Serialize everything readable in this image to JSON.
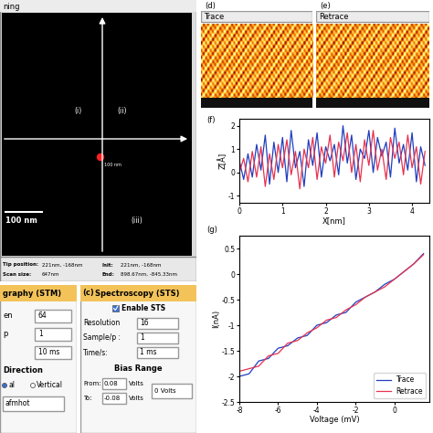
{
  "scanning_window": {
    "title": "ning",
    "image_labels": [
      "(i)",
      "(ii)",
      "(iii)"
    ],
    "scale_bar": "100 nm",
    "inset_scale_bar": "100 nm",
    "status": [
      [
        "Tip position:",
        "221nm, -168nm"
      ],
      [
        "Init:",
        "221nm, -168nm"
      ],
      [
        "Scan size:",
        "647nm"
      ],
      [
        "End:",
        "898.67nm, -845.33nm"
      ]
    ]
  },
  "topography": {
    "title": "graphy (STM)",
    "fields": [
      {
        "label": "en",
        "value": "64"
      },
      {
        "label": "p",
        "value": "1"
      },
      {
        "value": "10 ms"
      }
    ],
    "direction": {
      "title": "Direction",
      "options": [
        "al",
        "Vertical"
      ]
    },
    "colormap": "afmhot"
  },
  "spectroscopy": {
    "panel_label": "(c)",
    "title": "Spectroscopy (STS)",
    "checkbox": "Enable STS",
    "fields": [
      {
        "label": "Resolution",
        "value": "16"
      },
      {
        "label": "Sample/p :",
        "value": "1"
      },
      {
        "label": "Time/s:",
        "value": "1 ms"
      }
    ],
    "bias_range": {
      "title": "Bias Range",
      "rows": [
        {
          "label": "From:",
          "value": "0.08",
          "unit": "Volts"
        },
        {
          "label": "To:",
          "value": "-0.08",
          "unit": "Volts"
        }
      ],
      "dropdown": "0 Volts"
    }
  },
  "trace": {
    "panel_label": "(d)",
    "title": "Trace"
  },
  "retrace": {
    "panel_label": "(e)",
    "title": "Retrace"
  },
  "chart_data": [
    {
      "type": "line",
      "panel_label": "(f)",
      "x_label": "X[nm]",
      "y_label": "Z[Å]",
      "x": [
        0,
        0.1,
        0.2,
        0.3,
        0.4,
        0.5,
        0.6,
        0.7,
        0.8,
        0.9,
        1.0,
        1.1,
        1.2,
        1.3,
        1.4,
        1.5,
        1.6,
        1.7,
        1.8,
        1.9,
        2.0,
        2.1,
        2.2,
        2.3,
        2.4,
        2.5,
        2.6,
        2.7,
        2.8,
        2.9,
        3.0,
        3.1,
        3.2,
        3.3,
        3.4,
        3.5,
        3.6,
        3.7,
        3.8,
        3.9,
        4.0,
        4.1,
        4.2,
        4.3
      ],
      "series": [
        {
          "color": "#1f3fbf",
          "values": [
            0.5,
            -0.3,
            0.8,
            -0.2,
            1.2,
            0.1,
            1.6,
            -0.5,
            1.3,
            0.0,
            1.5,
            -0.4,
            1.8,
            0.2,
            0.9,
            -0.6,
            1.4,
            0.3,
            1.7,
            -0.2,
            1.1,
            0.5,
            1.2,
            -0.1,
            2.0,
            0.4,
            1.6,
            -0.3,
            1.0,
            0.6,
            1.8,
            0.0,
            1.5,
            0.7,
            1.3,
            -0.2,
            1.9,
            0.4,
            1.2,
            0.1,
            1.7,
            -0.4,
            1.1,
            0.3
          ]
        },
        {
          "color": "#e8324f",
          "values": [
            0.0,
            0.6,
            -0.4,
            0.9,
            -0.2,
            1.1,
            -0.6,
            0.8,
            -0.3,
            1.2,
            0.2,
            1.4,
            -0.1,
            0.9,
            -0.7,
            1.0,
            0.2,
            1.5,
            -0.3,
            1.1,
            0.4,
            1.6,
            -0.2,
            1.3,
            0.5,
            1.7,
            0.0,
            1.2,
            -0.4,
            1.4,
            0.3,
            1.8,
            0.1,
            1.0,
            -0.3,
            1.5,
            0.6,
            1.3,
            -0.1,
            1.6,
            0.2,
            1.1,
            -0.5,
            0.9
          ]
        }
      ],
      "xlim": [
        0,
        4.4
      ],
      "xticks": [
        0,
        1,
        2,
        3,
        4
      ],
      "ylim": [
        -1.3,
        2.3
      ],
      "yticks": [
        -1,
        0,
        1,
        2
      ]
    },
    {
      "type": "line",
      "panel_label": "(g)",
      "x_label": "Voltage (mV)",
      "y_label": "I(nA)",
      "x": [
        -8,
        -7.5,
        -7,
        -6.5,
        -6,
        -5.5,
        -5,
        -4.5,
        -4,
        -3.5,
        -3,
        -2.5,
        -2,
        -1.5,
        -1,
        -0.5,
        0,
        0.5,
        1,
        1.5
      ],
      "series": [
        {
          "name": "Trace",
          "color": "#1f3fbf",
          "values": [
            -2.0,
            -1.95,
            -1.7,
            -1.65,
            -1.45,
            -1.4,
            -1.25,
            -1.2,
            -1.0,
            -0.95,
            -0.8,
            -0.75,
            -0.55,
            -0.45,
            -0.35,
            -0.2,
            -0.1,
            0.05,
            0.2,
            0.4
          ]
        },
        {
          "name": "Retrace",
          "color": "#e8324f",
          "values": [
            -1.9,
            -1.85,
            -1.8,
            -1.6,
            -1.55,
            -1.35,
            -1.3,
            -1.15,
            -1.05,
            -0.9,
            -0.85,
            -0.7,
            -0.6,
            -0.45,
            -0.35,
            -0.25,
            -0.1,
            0.05,
            0.2,
            0.38
          ]
        }
      ],
      "xlim": [
        -8,
        1.8
      ],
      "xticks": [
        -8,
        -6,
        -4,
        -2,
        0
      ],
      "ylim": [
        -2.5,
        0.75
      ],
      "yticks": [
        -2.5,
        -2,
        -1.5,
        -1,
        -0.5,
        0,
        0.5
      ],
      "legend": "lower right"
    }
  ]
}
